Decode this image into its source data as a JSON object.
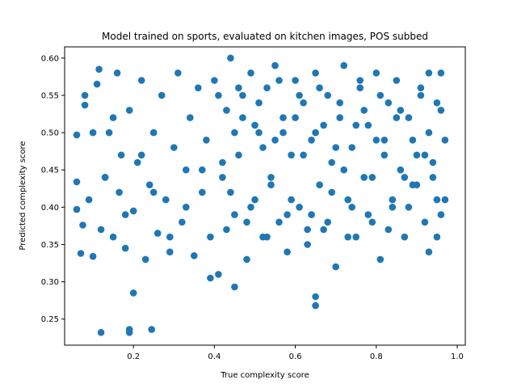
{
  "chart_data": {
    "type": "scatter",
    "title": "Model trained on sports, evaluated on kitchen images, POS subbed",
    "xlabel": "True complexity score",
    "ylabel": "Predicted complexity score",
    "xlim": [
      0.03,
      1.02
    ],
    "ylim": [
      0.215,
      0.615
    ],
    "xticks": [
      "0.2",
      "0.4",
      "0.6",
      "0.8",
      "1.0"
    ],
    "yticks": [
      "0.25",
      "0.30",
      "0.35",
      "0.40",
      "0.45",
      "0.50",
      "0.55",
      "0.60"
    ],
    "grid": false,
    "legend": "none",
    "series": [
      {
        "color": "#1f77b4",
        "x": [
          0.12,
          0.19,
          0.19,
          0.245,
          0.2,
          0.65,
          0.65,
          0.45,
          0.39,
          0.06,
          0.06,
          0.06,
          0.07,
          0.075,
          0.08,
          0.09,
          0.1,
          0.11,
          0.115,
          0.12,
          0.13,
          0.14,
          0.15,
          0.16,
          0.165,
          0.17,
          0.18,
          0.19,
          0.2,
          0.21,
          0.22,
          0.23,
          0.24,
          0.25,
          0.26,
          0.27,
          0.28,
          0.29,
          0.3,
          0.31,
          0.32,
          0.33,
          0.34,
          0.35,
          0.36,
          0.37,
          0.38,
          0.39,
          0.4,
          0.41,
          0.42,
          0.43,
          0.44,
          0.45,
          0.46,
          0.47,
          0.48,
          0.49,
          0.5,
          0.51,
          0.52,
          0.53,
          0.54,
          0.55,
          0.56,
          0.57,
          0.58,
          0.59,
          0.6,
          0.61,
          0.62,
          0.63,
          0.64,
          0.65,
          0.66,
          0.67,
          0.68,
          0.69,
          0.7,
          0.71,
          0.72,
          0.73,
          0.74,
          0.75,
          0.76,
          0.77,
          0.78,
          0.79,
          0.8,
          0.81,
          0.82,
          0.83,
          0.84,
          0.85,
          0.86,
          0.87,
          0.88,
          0.89,
          0.9,
          0.91,
          0.92,
          0.93,
          0.94,
          0.95,
          0.96,
          0.97,
          0.42,
          0.47,
          0.52,
          0.57,
          0.62,
          0.67,
          0.72,
          0.77,
          0.82,
          0.87,
          0.44,
          0.49,
          0.54,
          0.59,
          0.64,
          0.69,
          0.74,
          0.79,
          0.84,
          0.89,
          0.41,
          0.46,
          0.51,
          0.56,
          0.61,
          0.66,
          0.71,
          0.76,
          0.81,
          0.86,
          0.43,
          0.48,
          0.53,
          0.58,
          0.63,
          0.68,
          0.73,
          0.78,
          0.83,
          0.88,
          0.45,
          0.5,
          0.55,
          0.6,
          0.65,
          0.7,
          0.75,
          0.8,
          0.85,
          0.9,
          0.37,
          0.33,
          0.29,
          0.25,
          0.22,
          0.18,
          0.15,
          0.13,
          0.1,
          0.08,
          0.96,
          0.95,
          0.93,
          0.92,
          0.94,
          0.97,
          0.91,
          0.95,
          0.93,
          0.96
        ],
        "y": [
          0.232,
          0.232,
          0.236,
          0.236,
          0.285,
          0.28,
          0.268,
          0.293,
          0.305,
          0.497,
          0.434,
          0.397,
          0.338,
          0.376,
          0.537,
          0.41,
          0.334,
          0.565,
          0.585,
          0.37,
          0.44,
          0.5,
          0.36,
          0.58,
          0.42,
          0.47,
          0.345,
          0.53,
          0.395,
          0.46,
          0.57,
          0.33,
          0.43,
          0.5,
          0.365,
          0.55,
          0.41,
          0.34,
          0.48,
          0.58,
          0.38,
          0.45,
          0.52,
          0.335,
          0.56,
          0.42,
          0.49,
          0.36,
          0.57,
          0.31,
          0.44,
          0.53,
          0.6,
          0.39,
          0.47,
          0.55,
          0.33,
          0.58,
          0.41,
          0.5,
          0.36,
          0.56,
          0.44,
          0.59,
          0.38,
          0.52,
          0.34,
          0.47,
          0.57,
          0.4,
          0.54,
          0.35,
          0.49,
          0.58,
          0.43,
          0.37,
          0.55,
          0.46,
          0.32,
          0.52,
          0.59,
          0.41,
          0.48,
          0.36,
          0.56,
          0.44,
          0.51,
          0.38,
          0.58,
          0.33,
          0.47,
          0.54,
          0.4,
          0.57,
          0.45,
          0.36,
          0.52,
          0.49,
          0.43,
          0.55,
          0.38,
          0.58,
          0.46,
          0.41,
          0.53,
          0.49,
          0.46,
          0.52,
          0.48,
          0.5,
          0.47,
          0.51,
          0.45,
          0.53,
          0.49,
          0.44,
          0.42,
          0.4,
          0.43,
          0.41,
          0.39,
          0.42,
          0.4,
          0.44,
          0.41,
          0.43,
          0.55,
          0.56,
          0.54,
          0.57,
          0.55,
          0.56,
          0.54,
          0.57,
          0.55,
          0.53,
          0.37,
          0.38,
          0.36,
          0.39,
          0.37,
          0.38,
          0.36,
          0.39,
          0.37,
          0.4,
          0.5,
          0.51,
          0.49,
          0.52,
          0.5,
          0.48,
          0.51,
          0.49,
          0.52,
          0.47,
          0.45,
          0.4,
          0.36,
          0.42,
          0.47,
          0.39,
          0.52,
          0.44,
          0.5,
          0.55,
          0.58,
          0.54,
          0.5,
          0.47,
          0.44,
          0.41,
          0.56,
          0.36,
          0.34,
          0.39
        ]
      }
    ]
  }
}
